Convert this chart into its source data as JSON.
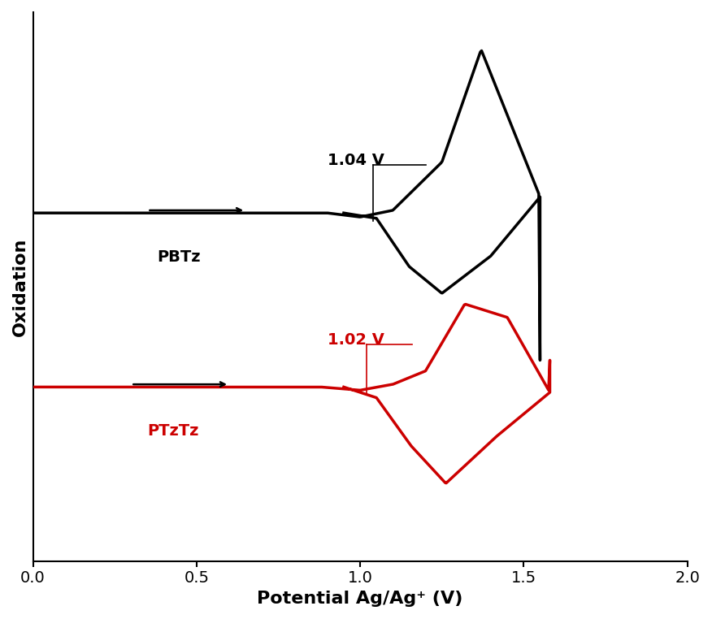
{
  "title": "",
  "xlabel": "Potential Ag/Ag⁺ (V)",
  "ylabel": "Oxidation",
  "xlim": [
    0.0,
    2.0
  ],
  "xticks": [
    0.0,
    0.5,
    1.0,
    1.5,
    2.0
  ],
  "color_black": "#000000",
  "color_red": "#cc0000",
  "label_pbt": "PBTz",
  "label_ptz": "PTzTz",
  "annot_black": "1.04 V",
  "annot_red": "1.02 V",
  "linewidth": 2.5,
  "annot_fontsize": 14,
  "label_fontsize": 14,
  "axis_fontsize": 16
}
